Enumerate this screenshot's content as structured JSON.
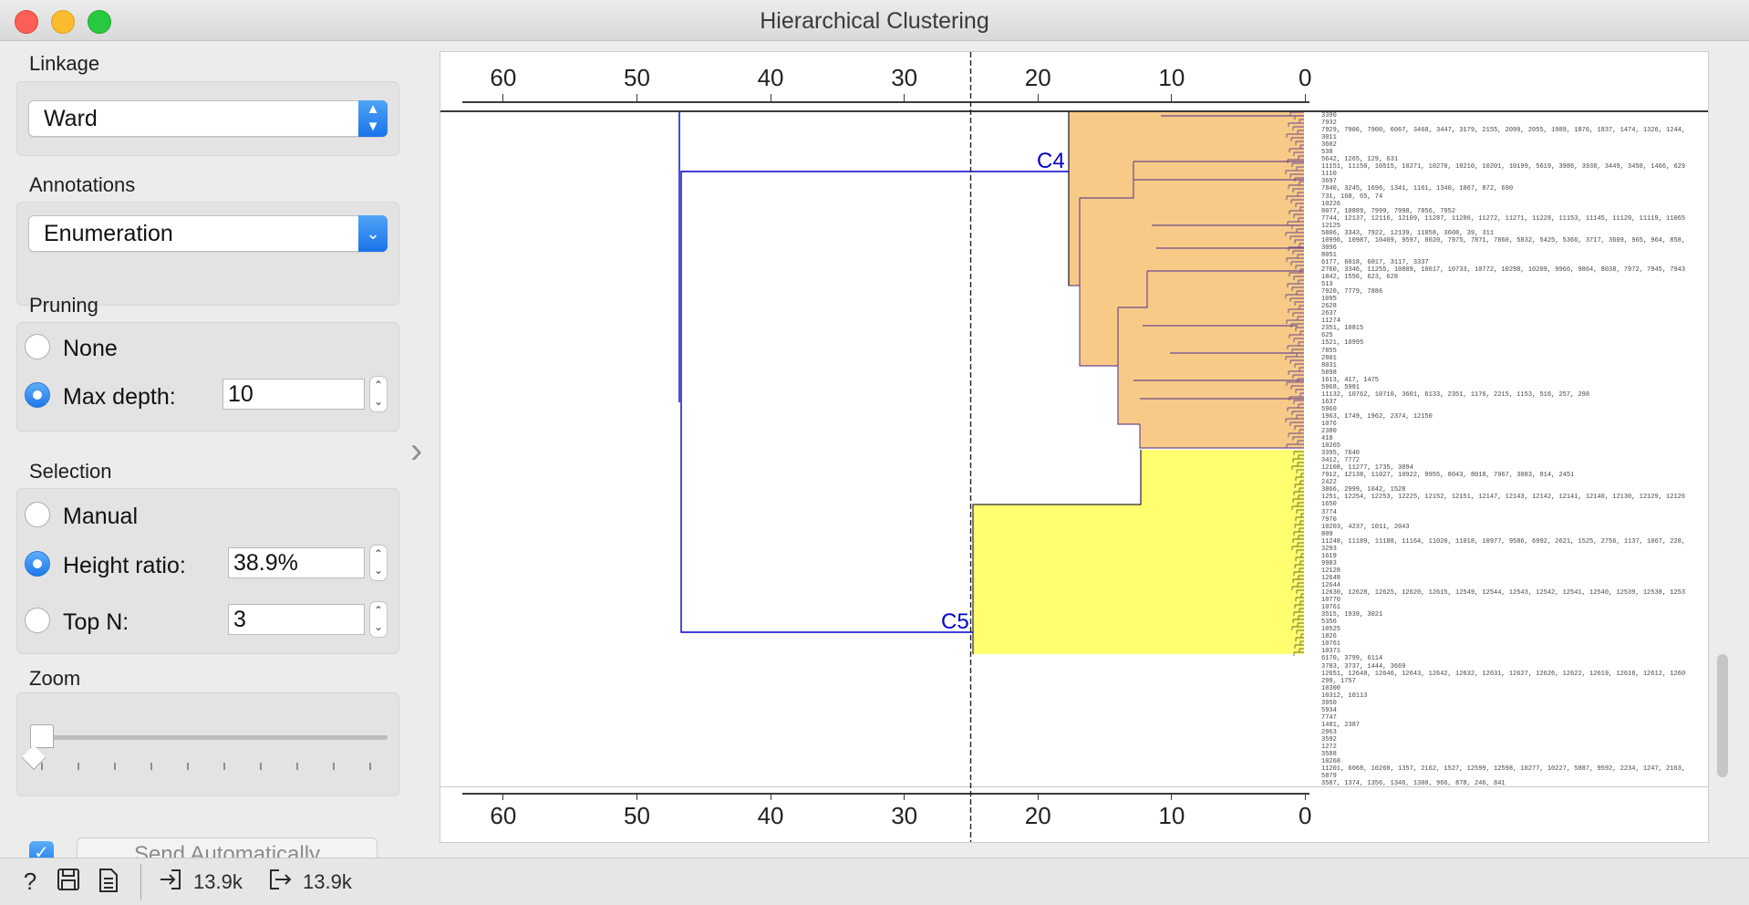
{
  "window": {
    "title": "Hierarchical Clustering"
  },
  "linkage": {
    "label": "Linkage",
    "value": "Ward"
  },
  "annotations": {
    "label": "Annotations",
    "value": "Enumeration"
  },
  "pruning": {
    "label": "Pruning",
    "none_label": "None",
    "max_depth_label": "Max depth:",
    "max_depth_value": "10",
    "selected": "max_depth"
  },
  "selection": {
    "label": "Selection",
    "manual_label": "Manual",
    "height_ratio_label": "Height ratio:",
    "height_ratio_value": "38.9%",
    "top_n_label": "Top N:",
    "top_n_value": "3",
    "selected": "height_ratio"
  },
  "zoom": {
    "label": "Zoom",
    "value": 0.0
  },
  "send": {
    "checked": true,
    "label": "Send Automatically"
  },
  "axis": {
    "ticks": [
      "60",
      "50",
      "40",
      "30",
      "20",
      "10",
      "0"
    ],
    "values": [
      60,
      50,
      40,
      30,
      20,
      10,
      0
    ],
    "max": 64.5,
    "cut_height": 25
  },
  "clusters": {
    "c4": {
      "label": "C4",
      "color": "#f7cb87"
    },
    "c5": {
      "label": "C5",
      "color": "#ffff70"
    }
  },
  "leaf_labels": [
    "3390",
    "7932",
    "7929, 7906, 7900, 6067, 3468, 3447, 3179, 2155, 2099, 2055, 1989, 1876, 1837, 1474, 1326, 1244, 970, 874",
    "3011",
    "3602",
    "538",
    "5642, 1265, 129, 631",
    "11151, 11150, 10515, 10271, 10270, 10210, 10201, 10199, 5619, 3986, 3938, 3449, 3450, 1466, 629, 143, 544",
    "1110",
    "3697",
    "7840, 3245, 1696, 1341, 1161, 1340, 1067, 872, 690",
    "731, 168, 65, 74",
    "10226",
    "8077, 10889, 7999, 7998, 7856, 7952",
    "7744, 12137, 12116, 12109, 11287, 11286, 11272, 11271, 11228, 11153, 11145, 11120, 11119, 11065, 11055, 11052, 110",
    "12125",
    "5806, 3343, 7922, 12139, 11058, 3608, 39, 311",
    "10996, 10987, 10409, 9597, 8020, 7975, 7871, 7860, 5832, 5425, 5366, 3717, 3609, 965, 964, 858, 833, 795, 676, 676, 28",
    "3096",
    "8051",
    "6177, 6018, 6017, 3117, 3337",
    "2760, 3346, 11255, 10809, 10617, 10733, 10772, 10298, 10209, 9966, 9864, 8038, 7972, 7945, 7943, 7942, 7914, 7913, 7",
    "1842, 1556, 623, 628",
    "513",
    "7920, 7779, 7886",
    "1095",
    "2628",
    "2637",
    "11274",
    "2351, 10815",
    "625",
    "1521, 10995",
    "7855",
    "2801",
    "8031",
    "5898",
    "1613, 417, 1475",
    "5968, 5981",
    "11132, 10762, 10710, 3601, 6133, 2351, 1176, 2215, 1153, 516, 257, 298",
    "1637",
    "5960",
    "1963, 1749, 1962, 2374, 12150",
    "1076",
    "2380",
    "418",
    "10265",
    "3395, 7640",
    "3412, 7772",
    "12108, 11277, 1735, 3094",
    "7912, 12138, 11027, 10922, 9955, 8043, 8018, 7967, 3083, 814, 2451",
    "2422",
    "3866, 2999, 1042, 1528",
    "1251, 12254, 12253, 12225, 12152, 12151, 12147, 12143, 12142, 12141, 12140, 12130, 12129, 12126, 12124, 12123, 121",
    "1650",
    "3774",
    "7970",
    "10203, 4237, 1011, 2043",
    "809",
    "11248, 11189, 11188, 11164, 11020, 11018, 10977, 9586, 6992, 2621, 1525, 2756, 1137, 1067, 220, 1070",
    "3293",
    "1619",
    "9983",
    "12128",
    "12648",
    "12644",
    "12630, 12628, 12625, 12620, 12615, 12549, 12544, 12543, 12542, 12541, 12540, 12539, 12538, 12537, 12536, 12534, 12",
    "10770",
    "10761",
    "3515, 1939, 3021",
    "5356",
    "10525",
    "1826",
    "10761",
    "10371",
    "6170, 3799, 6114",
    "3783, 3737, 1444, 3669",
    "12651, 12648, 12646, 12643, 12642, 12632, 12631, 12627, 12626, 12622, 12619, 12618, 12612, 12609, 12607, 12601, 12",
    "299, 1757",
    "10300",
    "10312, 10113",
    "3950",
    "5934",
    "7747",
    "1481, 2387",
    "2963",
    "3592",
    "1272",
    "3588",
    "10268",
    "11201, 6068, 10260, 1357, 2162, 1527, 12599, 12598, 10277, 10227, 5887, 9592, 2234, 1247, 2163, 1007, 847, 634, 840",
    "5879",
    "3587, 1374, 1356, 1346, 1300, 966, 878, 246, 841"
  ],
  "status": {
    "input_count": "13.9k",
    "output_count": "13.9k"
  },
  "icons": [
    "help-icon",
    "save-icon",
    "report-icon",
    "input-icon",
    "output-icon",
    "collapse-chevron-icon"
  ],
  "colors": {
    "accent": "#1d79ea",
    "dendrogram_line": "#0000cc",
    "cluster_c4": "#f7cb87",
    "cluster_c5": "#ffff70"
  }
}
